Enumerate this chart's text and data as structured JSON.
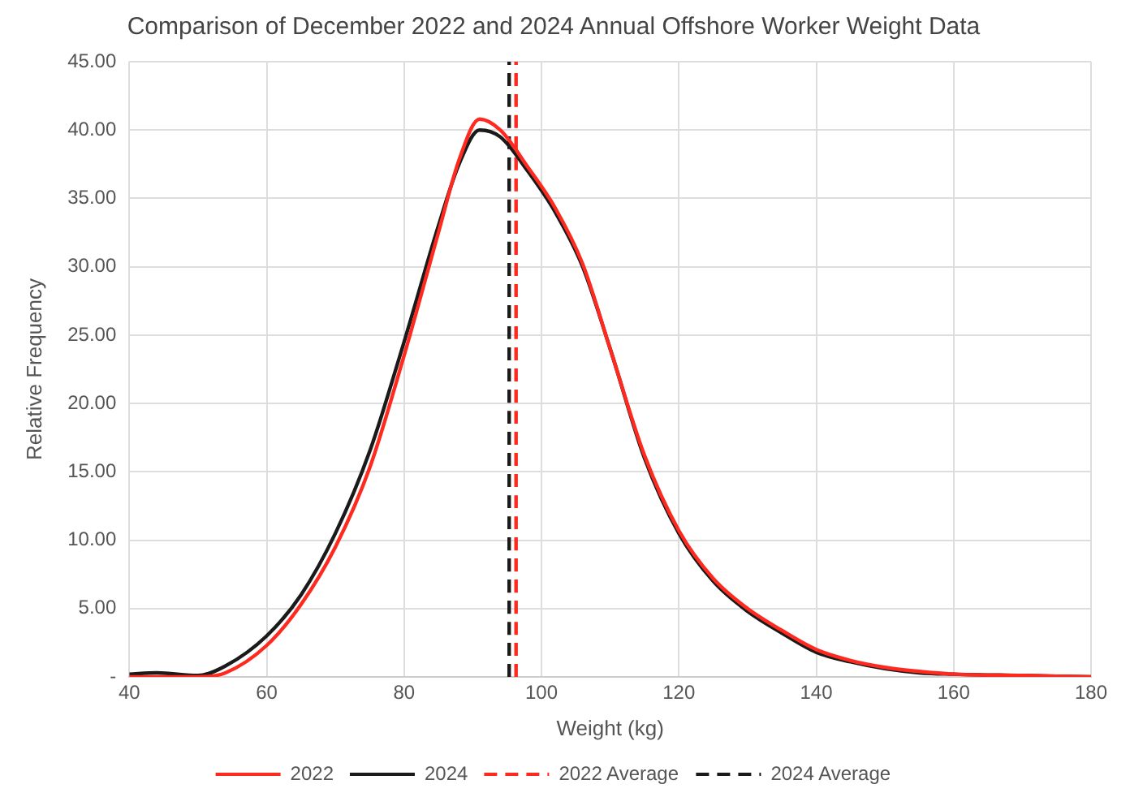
{
  "chart_data": {
    "type": "line",
    "title": "Comparison of December 2022 and 2024 Annual Offshore Worker Weight Data",
    "xlabel": "Weight (kg)",
    "ylabel": "Relative Frequency",
    "xlim": [
      40,
      180
    ],
    "xticks": [
      40,
      60,
      80,
      100,
      120,
      140,
      160,
      180
    ],
    "ylim": [
      0,
      45
    ],
    "yticks": [
      {
        "value": 0,
        "label": "-"
      },
      {
        "value": 5,
        "label": "5.00"
      },
      {
        "value": 10,
        "label": "10.00"
      },
      {
        "value": 15,
        "label": "15.00"
      },
      {
        "value": 20,
        "label": "20.00"
      },
      {
        "value": 25,
        "label": "25.00"
      },
      {
        "value": 30,
        "label": "30.00"
      },
      {
        "value": 35,
        "label": "35.00"
      },
      {
        "value": 40,
        "label": "40.00"
      },
      {
        "value": 45,
        "label": "45.00"
      }
    ],
    "grid": true,
    "legend": "bottom",
    "marker": "none",
    "series": [
      {
        "name": "2022",
        "color": "#ff2a1f",
        "line_style": "solid",
        "x": [
          40,
          50,
          54,
          60,
          65,
          70,
          75,
          80,
          85,
          88,
          91,
          94,
          98,
          102,
          106,
          110,
          115,
          120,
          125,
          130,
          135,
          140,
          145,
          150,
          155,
          160,
          170,
          180
        ],
        "values": [
          0,
          0,
          0.3,
          2.3,
          5.3,
          9.5,
          15.3,
          23.5,
          32.5,
          37.8,
          40.8,
          40,
          37.3,
          34.3,
          30.2,
          24,
          16.2,
          10.7,
          7.2,
          5,
          3.4,
          2,
          1.2,
          0.7,
          0.4,
          0.2,
          0.1,
          0
        ]
      },
      {
        "name": "2024",
        "color": "#1a1a1a",
        "line_style": "solid",
        "x": [
          40,
          44,
          50,
          54,
          60,
          65,
          70,
          75,
          80,
          85,
          88,
          91,
          94,
          98,
          102,
          106,
          110,
          115,
          120,
          125,
          130,
          135,
          140,
          145,
          150,
          155,
          160,
          170,
          180
        ],
        "values": [
          0.2,
          0.3,
          0.1,
          0.8,
          3,
          6,
          10.5,
          16.5,
          24.5,
          33,
          37.5,
          40,
          39.5,
          37,
          34,
          30,
          24,
          16,
          10.5,
          7,
          4.8,
          3.2,
          1.8,
          1.1,
          0.6,
          0.3,
          0.2,
          0.1,
          0
        ]
      },
      {
        "name": "2022 Average",
        "color": "#ff2a1f",
        "line_style": "dashed",
        "x": [
          96.3,
          96.3
        ],
        "values": [
          0,
          45
        ]
      },
      {
        "name": "2024 Average",
        "color": "#1a1a1a",
        "line_style": "dashed",
        "x": [
          95.3,
          95.3
        ],
        "values": [
          0,
          45
        ]
      }
    ]
  }
}
